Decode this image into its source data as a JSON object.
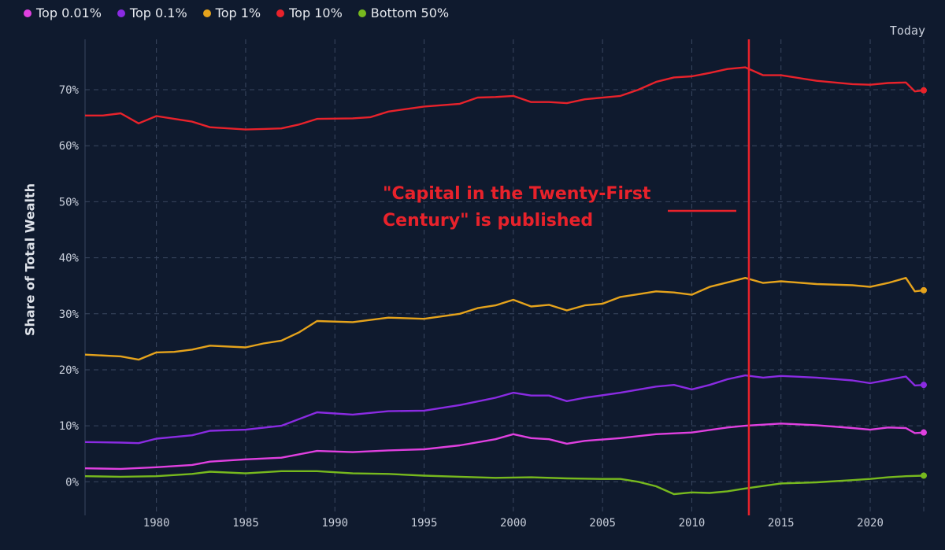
{
  "chart_data": {
    "type": "line",
    "title": "",
    "xlabel": "",
    "ylabel": "Share of Total Wealth",
    "xlim": [
      1976,
      2023
    ],
    "ylim": [
      -6,
      79
    ],
    "x_ticks": [
      1980,
      1985,
      1990,
      1995,
      2000,
      2005,
      2010,
      2015,
      2020
    ],
    "y_ticks": [
      0,
      10,
      20,
      30,
      40,
      50,
      60,
      70
    ],
    "y_tick_labels": [
      "0%",
      "10%",
      "20%",
      "30%",
      "40%",
      "50%",
      "60%",
      "70%"
    ],
    "x_tick_labels": [
      "1980",
      "1985",
      "1990",
      "1995",
      "2000",
      "2005",
      "2010",
      "2015",
      "2020"
    ],
    "grid": true,
    "legend_position": "top-left",
    "right_label": "Today",
    "series": [
      {
        "name": "Top 0.01%",
        "color": "#e040e0",
        "points": [
          [
            1976,
            2.4
          ],
          [
            1978,
            2.3
          ],
          [
            1980,
            2.6
          ],
          [
            1982,
            3.0
          ],
          [
            1983,
            3.6
          ],
          [
            1985,
            4.0
          ],
          [
            1987,
            4.3
          ],
          [
            1989,
            5.5
          ],
          [
            1991,
            5.3
          ],
          [
            1993,
            5.6
          ],
          [
            1995,
            5.8
          ],
          [
            1997,
            6.5
          ],
          [
            1999,
            7.6
          ],
          [
            2000,
            8.5
          ],
          [
            2001,
            7.8
          ],
          [
            2002,
            7.6
          ],
          [
            2003,
            6.8
          ],
          [
            2004,
            7.3
          ],
          [
            2006,
            7.8
          ],
          [
            2008,
            8.5
          ],
          [
            2010,
            8.8
          ],
          [
            2012,
            9.7
          ],
          [
            2013,
            10.0
          ],
          [
            2015,
            10.4
          ],
          [
            2017,
            10.1
          ],
          [
            2019,
            9.6
          ],
          [
            2020,
            9.3
          ],
          [
            2021,
            9.7
          ],
          [
            2022,
            9.6
          ],
          [
            2022.5,
            8.7
          ],
          [
            2023,
            8.8
          ]
        ]
      },
      {
        "name": "Top 0.1%",
        "color": "#8a2be2",
        "points": [
          [
            1976,
            7.1
          ],
          [
            1978,
            7.0
          ],
          [
            1979,
            6.9
          ],
          [
            1980,
            7.7
          ],
          [
            1982,
            8.3
          ],
          [
            1983,
            9.1
          ],
          [
            1985,
            9.3
          ],
          [
            1987,
            10.0
          ],
          [
            1989,
            12.4
          ],
          [
            1991,
            12.0
          ],
          [
            1993,
            12.6
          ],
          [
            1995,
            12.7
          ],
          [
            1997,
            13.7
          ],
          [
            1999,
            15.0
          ],
          [
            2000,
            15.9
          ],
          [
            2001,
            15.4
          ],
          [
            2002,
            15.4
          ],
          [
            2003,
            14.4
          ],
          [
            2004,
            15.0
          ],
          [
            2006,
            15.9
          ],
          [
            2008,
            17.0
          ],
          [
            2009,
            17.3
          ],
          [
            2010,
            16.5
          ],
          [
            2011,
            17.3
          ],
          [
            2012,
            18.3
          ],
          [
            2013,
            19.0
          ],
          [
            2014,
            18.6
          ],
          [
            2015,
            18.9
          ],
          [
            2017,
            18.6
          ],
          [
            2019,
            18.1
          ],
          [
            2020,
            17.6
          ],
          [
            2021,
            18.2
          ],
          [
            2022,
            18.8
          ],
          [
            2022.5,
            17.2
          ],
          [
            2023,
            17.3
          ]
        ]
      },
      {
        "name": "Top 1%",
        "color": "#e5a31c",
        "points": [
          [
            1976,
            22.7
          ],
          [
            1978,
            22.4
          ],
          [
            1979,
            21.8
          ],
          [
            1980,
            23.1
          ],
          [
            1981,
            23.2
          ],
          [
            1982,
            23.6
          ],
          [
            1983,
            24.3
          ],
          [
            1985,
            24.0
          ],
          [
            1986,
            24.7
          ],
          [
            1987,
            25.2
          ],
          [
            1988,
            26.7
          ],
          [
            1989,
            28.7
          ],
          [
            1991,
            28.5
          ],
          [
            1993,
            29.3
          ],
          [
            1995,
            29.1
          ],
          [
            1997,
            30.0
          ],
          [
            1998,
            31.0
          ],
          [
            1999,
            31.5
          ],
          [
            2000,
            32.5
          ],
          [
            2001,
            31.3
          ],
          [
            2002,
            31.6
          ],
          [
            2003,
            30.6
          ],
          [
            2004,
            31.5
          ],
          [
            2005,
            31.8
          ],
          [
            2006,
            33.0
          ],
          [
            2007,
            33.5
          ],
          [
            2008,
            34.0
          ],
          [
            2009,
            33.8
          ],
          [
            2010,
            33.4
          ],
          [
            2011,
            34.8
          ],
          [
            2012,
            35.6
          ],
          [
            2013,
            36.4
          ],
          [
            2014,
            35.5
          ],
          [
            2015,
            35.8
          ],
          [
            2017,
            35.3
          ],
          [
            2019,
            35.1
          ],
          [
            2020,
            34.8
          ],
          [
            2021,
            35.5
          ],
          [
            2022,
            36.4
          ],
          [
            2022.5,
            34.0
          ],
          [
            2023,
            34.2
          ]
        ]
      },
      {
        "name": "Top 10%",
        "color": "#e8222b",
        "points": [
          [
            1976,
            65.4
          ],
          [
            1977,
            65.4
          ],
          [
            1978,
            65.8
          ],
          [
            1979,
            64.0
          ],
          [
            1980,
            65.3
          ],
          [
            1981,
            64.8
          ],
          [
            1982,
            64.3
          ],
          [
            1983,
            63.3
          ],
          [
            1985,
            62.9
          ],
          [
            1986,
            63.0
          ],
          [
            1987,
            63.1
          ],
          [
            1988,
            63.8
          ],
          [
            1989,
            64.8
          ],
          [
            1991,
            64.9
          ],
          [
            1992,
            65.1
          ],
          [
            1993,
            66.1
          ],
          [
            1995,
            67.0
          ],
          [
            1997,
            67.5
          ],
          [
            1998,
            68.6
          ],
          [
            1999,
            68.7
          ],
          [
            2000,
            68.9
          ],
          [
            2001,
            67.8
          ],
          [
            2002,
            67.8
          ],
          [
            2003,
            67.6
          ],
          [
            2004,
            68.3
          ],
          [
            2006,
            68.9
          ],
          [
            2007,
            70.0
          ],
          [
            2008,
            71.4
          ],
          [
            2009,
            72.2
          ],
          [
            2010,
            72.4
          ],
          [
            2011,
            73.0
          ],
          [
            2012,
            73.7
          ],
          [
            2013,
            74.0
          ],
          [
            2014,
            72.6
          ],
          [
            2015,
            72.6
          ],
          [
            2017,
            71.6
          ],
          [
            2019,
            71.0
          ],
          [
            2020,
            70.9
          ],
          [
            2021,
            71.2
          ],
          [
            2022,
            71.3
          ],
          [
            2022.5,
            69.7
          ],
          [
            2023,
            69.9
          ]
        ]
      },
      {
        "name": "Bottom 50%",
        "color": "#77b91e",
        "points": [
          [
            1976,
            1.0
          ],
          [
            1978,
            0.9
          ],
          [
            1980,
            1.0
          ],
          [
            1982,
            1.4
          ],
          [
            1983,
            1.8
          ],
          [
            1985,
            1.5
          ],
          [
            1987,
            1.9
          ],
          [
            1989,
            1.9
          ],
          [
            1991,
            1.5
          ],
          [
            1993,
            1.4
          ],
          [
            1995,
            1.1
          ],
          [
            1997,
            0.9
          ],
          [
            1999,
            0.7
          ],
          [
            2001,
            0.8
          ],
          [
            2003,
            0.6
          ],
          [
            2005,
            0.5
          ],
          [
            2006,
            0.5
          ],
          [
            2007,
            0.0
          ],
          [
            2008,
            -0.8
          ],
          [
            2009,
            -2.2
          ],
          [
            2010,
            -1.9
          ],
          [
            2011,
            -2.0
          ],
          [
            2012,
            -1.7
          ],
          [
            2013,
            -1.2
          ],
          [
            2015,
            -0.3
          ],
          [
            2017,
            -0.1
          ],
          [
            2019,
            0.3
          ],
          [
            2020,
            0.5
          ],
          [
            2021,
            0.8
          ],
          [
            2022,
            1.0
          ],
          [
            2023,
            1.1
          ]
        ]
      }
    ],
    "annotation": {
      "text_line1": "\"Capital in the Twenty-First",
      "text_line2": "Century\" is published",
      "x": 2013.2,
      "color": "#e8222b"
    }
  }
}
